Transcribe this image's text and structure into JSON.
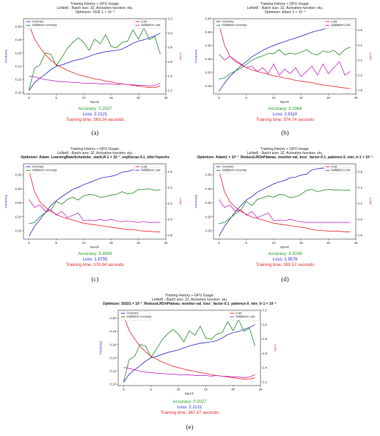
{
  "chart_data": [
    {
      "id": "a",
      "type": "line",
      "title": [
        "Training History + GPU Usage:",
        "LeNet5 - Batch size: 32, Activation function: elu,",
        "Optimizer: SGD 1 × 10⁻³"
      ],
      "xlabel": "Epoch",
      "ylabel": "Accuracy",
      "y2label": "Loss",
      "xlim": [
        -1,
        25
      ],
      "ylim": [
        0.098,
        0.212
      ],
      "y2lim": [
        2.15,
        3.2
      ],
      "x_ticks": [
        "0",
        "5",
        "10",
        "15",
        "20",
        "25"
      ],
      "y_ticks": [
        "0.10",
        "0.12",
        "0.14",
        "0.16",
        "0.18",
        "0.20"
      ],
      "y2_ticks": [
        "2.2",
        "2.4",
        "2.6",
        "2.8",
        "3.0",
        "3.2"
      ],
      "legend_left": [
        "Accuracy",
        "Validation Accuracy"
      ],
      "legend_right": [
        "Loss",
        "Validation Loss"
      ],
      "x": [
        0,
        1,
        2,
        3,
        4,
        5,
        6,
        7,
        8,
        9,
        10,
        11,
        12,
        13,
        14,
        15,
        16,
        17,
        18,
        19,
        20,
        21,
        22,
        23,
        24
      ],
      "series": [
        {
          "name": "Accuracy",
          "axis": "left",
          "color": "#1f1fcc",
          "values": [
            0.103,
            0.115,
            0.122,
            0.128,
            0.135,
            0.14,
            0.142,
            0.145,
            0.148,
            0.15,
            0.152,
            0.155,
            0.158,
            0.16,
            0.162,
            0.163,
            0.164,
            0.166,
            0.17,
            0.175,
            0.178,
            0.18,
            0.183,
            0.186,
            0.19
          ]
        },
        {
          "name": "Validation Accuracy",
          "axis": "left",
          "color": "#1a8a1a",
          "values": [
            0.104,
            0.137,
            0.142,
            0.16,
            0.158,
            0.141,
            0.153,
            0.167,
            0.176,
            0.183,
            0.176,
            0.164,
            0.181,
            0.174,
            0.188,
            0.17,
            0.168,
            0.176,
            0.178,
            0.195,
            0.181,
            0.198,
            0.18,
            0.185,
            0.158
          ]
        },
        {
          "name": "Loss",
          "axis": "right",
          "color": "#e81a1a",
          "values": [
            3.12,
            2.92,
            2.8,
            2.7,
            2.62,
            2.56,
            2.52,
            2.48,
            2.45,
            2.42,
            2.4,
            2.38,
            2.36,
            2.35,
            2.33,
            2.32,
            2.3,
            2.29,
            2.28,
            2.27,
            2.26,
            2.25,
            2.24,
            2.24,
            2.26
          ]
        },
        {
          "name": "Validation Loss",
          "axis": "right",
          "color": "#c020c0",
          "values": [
            2.4,
            2.39,
            2.37,
            2.35,
            2.34,
            2.33,
            2.32,
            2.32,
            2.31,
            2.31,
            2.3,
            2.3,
            2.3,
            2.29,
            2.29,
            2.29,
            2.28,
            2.29,
            2.28,
            2.28,
            2.27,
            2.27,
            2.26,
            2.27,
            2.3
          ]
        }
      ],
      "accuracy": "Accuracy: 0.2027",
      "loss": "Loss: 2.2121",
      "time": "Training time: 363.34 seconds",
      "caption": "(a)"
    },
    {
      "id": "b",
      "type": "line",
      "title": [
        "Training History + GPU Usage:",
        "LeNet5 - Batch size: 32, Activation function: elu,",
        "Optimizer: Adam 1 × 10⁻³"
      ],
      "xlabel": "Epoch",
      "ylabel": "Accuracy",
      "y2label": "Loss",
      "xlim": [
        -1,
        25
      ],
      "ylim": [
        0.12,
        0.4
      ],
      "y2lim": [
        1.75,
        2.75
      ],
      "x_ticks": [
        "0",
        "5",
        "10",
        "15",
        "20",
        "25"
      ],
      "y_ticks": [
        "0.15",
        "0.20",
        "0.25",
        "0.30",
        "0.35",
        "0.40"
      ],
      "y2_ticks": [
        "1.8",
        "2.0",
        "2.2",
        "2.4",
        "2.6"
      ],
      "legend_left": [
        "Accuracy",
        "Validation Accuracy"
      ],
      "legend_right": [
        "Loss",
        "Validation Loss"
      ],
      "x": [
        0,
        1,
        2,
        3,
        4,
        5,
        6,
        7,
        8,
        9,
        10,
        11,
        12,
        13,
        14,
        15,
        16,
        17,
        18,
        19,
        20,
        21,
        22,
        23,
        24
      ],
      "series": [
        {
          "name": "Accuracy",
          "axis": "left",
          "color": "#1f1fcc",
          "values": [
            0.13,
            0.16,
            0.185,
            0.205,
            0.225,
            0.24,
            0.258,
            0.27,
            0.282,
            0.292,
            0.3,
            0.308,
            0.315,
            0.322,
            0.328,
            0.335,
            0.342,
            0.35,
            0.355,
            0.36,
            0.368,
            0.372,
            0.376,
            0.38,
            0.385
          ]
        },
        {
          "name": "Validation Accuracy",
          "axis": "left",
          "color": "#1a8a1a",
          "values": [
            0.175,
            0.18,
            0.195,
            0.205,
            0.215,
            0.23,
            0.245,
            0.255,
            0.262,
            0.27,
            0.27,
            0.285,
            0.265,
            0.272,
            0.268,
            0.275,
            0.285,
            0.27,
            0.265,
            0.28,
            0.275,
            0.282,
            0.265,
            0.285,
            0.295
          ]
        },
        {
          "name": "Loss",
          "axis": "right",
          "color": "#e81a1a",
          "values": [
            2.68,
            2.4,
            2.25,
            2.18,
            2.14,
            2.1,
            2.07,
            2.05,
            2.03,
            2.01,
            1.99,
            1.98,
            1.96,
            1.95,
            1.93,
            1.92,
            1.91,
            1.9,
            1.88,
            1.87,
            1.86,
            1.85,
            1.84,
            1.83,
            1.82
          ]
        },
        {
          "name": "Validation Loss",
          "axis": "right",
          "color": "#c020c0",
          "values": [
            2.28,
            2.2,
            2.25,
            2.2,
            2.15,
            2.1,
            2.12,
            2.05,
            2.1,
            2.02,
            2.15,
            2.0,
            2.08,
            2.02,
            2.1,
            1.98,
            2.05,
            2.12,
            2.0,
            2.15,
            2.02,
            2.1,
            2.18,
            2.0,
            2.05
          ]
        }
      ],
      "accuracy": "Accuracy: 0.2964",
      "loss": "Loss: 2.0110",
      "time": "Training time: 374.74 seconds",
      "caption": "(b)"
    },
    {
      "id": "c",
      "type": "line",
      "title": [
        "Training History + GPU Usage:",
        "LeNet5 - Batch size: 32, Activation function: elu,",
        "Optimizer: Adam_LearningRateScheduler_startLR-1 × 10⁻³_expDecay-0.1_after7epochs"
      ],
      "xlabel": "Epoch",
      "ylabel": "Accuracy",
      "y2label": "Loss",
      "xlim": [
        -1,
        25
      ],
      "ylim": [
        0.12,
        0.39
      ],
      "y2lim": [
        1.75,
        2.7
      ],
      "x_ticks": [
        "0",
        "5",
        "10",
        "15",
        "20",
        "25"
      ],
      "y_ticks": [
        "0.15",
        "0.20",
        "0.25",
        "0.30",
        "0.35"
      ],
      "y2_ticks": [
        "1.8",
        "2.0",
        "2.2",
        "2.4",
        "2.6"
      ],
      "legend_left": [
        "Accuracy",
        "Validation Accuracy"
      ],
      "legend_right": [
        "Loss",
        "Validation Loss"
      ],
      "x": [
        0,
        1,
        2,
        3,
        4,
        5,
        6,
        7,
        8,
        9,
        10,
        11,
        12,
        13,
        14,
        15,
        16,
        17,
        18,
        19,
        20,
        21,
        22,
        23,
        24
      ],
      "series": [
        {
          "name": "Accuracy",
          "axis": "left",
          "color": "#1f1fcc",
          "values": [
            0.13,
            0.165,
            0.19,
            0.215,
            0.24,
            0.258,
            0.272,
            0.285,
            0.298,
            0.305,
            0.315,
            0.322,
            0.33,
            0.338,
            0.342,
            0.345,
            0.35,
            0.36,
            0.362,
            0.368,
            0.37,
            0.372,
            0.375,
            0.376,
            0.378
          ]
        },
        {
          "name": "Validation Accuracy",
          "axis": "left",
          "color": "#1a8a1a",
          "values": [
            0.175,
            0.18,
            0.2,
            0.215,
            0.225,
            0.255,
            0.245,
            0.262,
            0.27,
            0.26,
            0.275,
            0.28,
            0.278,
            0.27,
            0.272,
            0.278,
            0.28,
            0.29,
            0.282,
            0.285,
            0.298,
            0.298,
            0.3,
            0.295,
            0.296
          ]
        },
        {
          "name": "Loss",
          "axis": "right",
          "color": "#e81a1a",
          "values": [
            2.62,
            2.35,
            2.22,
            2.15,
            2.1,
            2.06,
            2.03,
            2.01,
            1.99,
            1.97,
            1.95,
            1.94,
            1.93,
            1.92,
            1.91,
            1.9,
            1.89,
            1.88,
            1.87,
            1.87,
            1.86,
            1.85,
            1.85,
            1.84,
            1.84
          ]
        },
        {
          "name": "Validation Loss",
          "axis": "right",
          "color": "#c020c0",
          "values": [
            2.25,
            2.15,
            2.18,
            2.1,
            2.12,
            2.05,
            2.1,
            2.02,
            2.05,
            2.08,
            1.98,
            1.99,
            1.98,
            2.0,
            1.98,
            2.0,
            1.98,
            1.97,
            1.98,
            1.97,
            1.96,
            1.97,
            1.96,
            1.96,
            1.96
          ]
        }
      ],
      "accuracy": "Accuracy: 0.3009",
      "loss": "Loss: 1.9755",
      "time": "Training time: 378.94 seconds",
      "caption": "(c)"
    },
    {
      "id": "d",
      "type": "line",
      "title": [
        "Training History + GPU Usage:",
        "LeNet5 - Batch size: 32, Activation function: elu,",
        "Optimizer: Adam1 × 10⁻³_ReduceLROnPlateau_monitor-val_loss'_factor-0.1_patience-5_min_lr-1 × 10⁻⁵"
      ],
      "xlabel": "Epoch",
      "ylabel": "Accuracy",
      "y2label": "Loss",
      "xlim": [
        -1,
        25
      ],
      "ylim": [
        0.12,
        0.39
      ],
      "y2lim": [
        1.75,
        2.7
      ],
      "x_ticks": [
        "0",
        "5",
        "10",
        "15",
        "20",
        "25"
      ],
      "y_ticks": [
        "0.15",
        "0.20",
        "0.25",
        "0.30",
        "0.35"
      ],
      "y2_ticks": [
        "1.8",
        "2.0",
        "2.2",
        "2.4",
        "2.6"
      ],
      "legend_left": [
        "Accuracy",
        "Validation Accuracy"
      ],
      "legend_right": [
        "Loss",
        "Validation Loss"
      ],
      "x": [
        0,
        1,
        2,
        3,
        4,
        5,
        6,
        7,
        8,
        9,
        10,
        11,
        12,
        13,
        14,
        15,
        16,
        17,
        18,
        19,
        20,
        21,
        22,
        23,
        24
      ],
      "series": [
        {
          "name": "Accuracy",
          "axis": "left",
          "color": "#1f1fcc",
          "values": [
            0.13,
            0.165,
            0.192,
            0.218,
            0.24,
            0.26,
            0.272,
            0.288,
            0.298,
            0.308,
            0.318,
            0.325,
            0.33,
            0.34,
            0.342,
            0.35,
            0.352,
            0.368,
            0.372,
            0.375,
            0.373,
            0.37,
            0.374,
            0.376,
            0.376
          ]
        },
        {
          "name": "Validation Accuracy",
          "axis": "left",
          "color": "#1a8a1a",
          "values": [
            0.175,
            0.18,
            0.195,
            0.21,
            0.225,
            0.255,
            0.24,
            0.262,
            0.268,
            0.275,
            0.27,
            0.28,
            0.278,
            0.268,
            0.272,
            0.28,
            0.295,
            0.298,
            0.29,
            0.295,
            0.298,
            0.296,
            0.296,
            0.295,
            0.296
          ]
        },
        {
          "name": "Loss",
          "axis": "right",
          "color": "#e81a1a",
          "values": [
            2.62,
            2.35,
            2.22,
            2.15,
            2.1,
            2.06,
            2.03,
            2.01,
            1.99,
            1.97,
            1.95,
            1.94,
            1.93,
            1.92,
            1.91,
            1.9,
            1.89,
            1.87,
            1.86,
            1.86,
            1.85,
            1.85,
            1.85,
            1.84,
            1.84
          ]
        },
        {
          "name": "Validation Loss",
          "axis": "right",
          "color": "#c020c0",
          "values": [
            2.25,
            2.15,
            2.18,
            2.1,
            2.12,
            2.05,
            2.1,
            2.02,
            2.05,
            2.08,
            1.98,
            1.99,
            1.98,
            2.0,
            1.98,
            1.97,
            1.96,
            1.96,
            1.96,
            1.96,
            1.96,
            1.96,
            1.96,
            1.96,
            1.96
          ]
        }
      ],
      "accuracy": "Accuracy: 0.3036",
      "loss": "Loss: 1.9578",
      "time": "Training time: 359.57 seconds",
      "caption": "(d)"
    },
    {
      "id": "e",
      "type": "line",
      "title": [
        "Training History + GPU Usage:",
        "LeNet5 - Batch size: 32, Activation function: elu,",
        "Optimizer: SGD1 × 10⁻³_ReduceLROnPlateau_monitor-val_loss'_factor-0.1_patience-5_min_lr-1 × 10⁻⁵"
      ],
      "xlabel": "Epoch",
      "ylabel": "Accuracy",
      "y2label": "Loss",
      "xlim": [
        -1,
        25
      ],
      "ylim": [
        0.098,
        0.212
      ],
      "y2lim": [
        2.15,
        3.2
      ],
      "x_ticks": [
        "0",
        "5",
        "10",
        "15",
        "20",
        "25"
      ],
      "y_ticks": [
        "0.10",
        "0.12",
        "0.14",
        "0.16",
        "0.18",
        "0.20"
      ],
      "y2_ticks": [
        "2.2",
        "2.4",
        "2.6",
        "2.8",
        "3.0",
        "3.2"
      ],
      "legend_left": [
        "Accuracy",
        "Validation Accuracy"
      ],
      "legend_right": [
        "Loss",
        "Validation Loss"
      ],
      "x": [
        0,
        1,
        2,
        3,
        4,
        5,
        6,
        7,
        8,
        9,
        10,
        11,
        12,
        13,
        14,
        15,
        16,
        17,
        18,
        19,
        20,
        21,
        22,
        23,
        24
      ],
      "series": [
        {
          "name": "Accuracy",
          "axis": "left",
          "color": "#1f1fcc",
          "values": [
            0.103,
            0.115,
            0.122,
            0.128,
            0.135,
            0.14,
            0.142,
            0.145,
            0.148,
            0.15,
            0.152,
            0.155,
            0.158,
            0.16,
            0.162,
            0.163,
            0.164,
            0.166,
            0.17,
            0.175,
            0.178,
            0.18,
            0.183,
            0.186,
            0.19
          ]
        },
        {
          "name": "Validation Accuracy",
          "axis": "left",
          "color": "#1a8a1a",
          "values": [
            0.104,
            0.137,
            0.142,
            0.16,
            0.158,
            0.141,
            0.153,
            0.167,
            0.176,
            0.183,
            0.176,
            0.164,
            0.181,
            0.174,
            0.188,
            0.17,
            0.168,
            0.176,
            0.178,
            0.195,
            0.181,
            0.198,
            0.18,
            0.185,
            0.158
          ]
        },
        {
          "name": "Loss",
          "axis": "right",
          "color": "#e81a1a",
          "values": [
            3.12,
            2.92,
            2.8,
            2.7,
            2.62,
            2.56,
            2.52,
            2.48,
            2.45,
            2.42,
            2.4,
            2.38,
            2.36,
            2.35,
            2.33,
            2.32,
            2.3,
            2.29,
            2.28,
            2.27,
            2.26,
            2.25,
            2.24,
            2.24,
            2.26
          ]
        },
        {
          "name": "Validation Loss",
          "axis": "right",
          "color": "#c020c0",
          "values": [
            2.4,
            2.39,
            2.37,
            2.35,
            2.34,
            2.33,
            2.32,
            2.32,
            2.31,
            2.31,
            2.3,
            2.3,
            2.3,
            2.29,
            2.29,
            2.29,
            2.28,
            2.29,
            2.28,
            2.28,
            2.27,
            2.27,
            2.26,
            2.27,
            2.3
          ]
        }
      ],
      "accuracy": "Accuracy: 0.2027",
      "loss": "Loss: 2.2121",
      "time": "Training time: 367.47 seconds",
      "caption": "(e)"
    }
  ]
}
